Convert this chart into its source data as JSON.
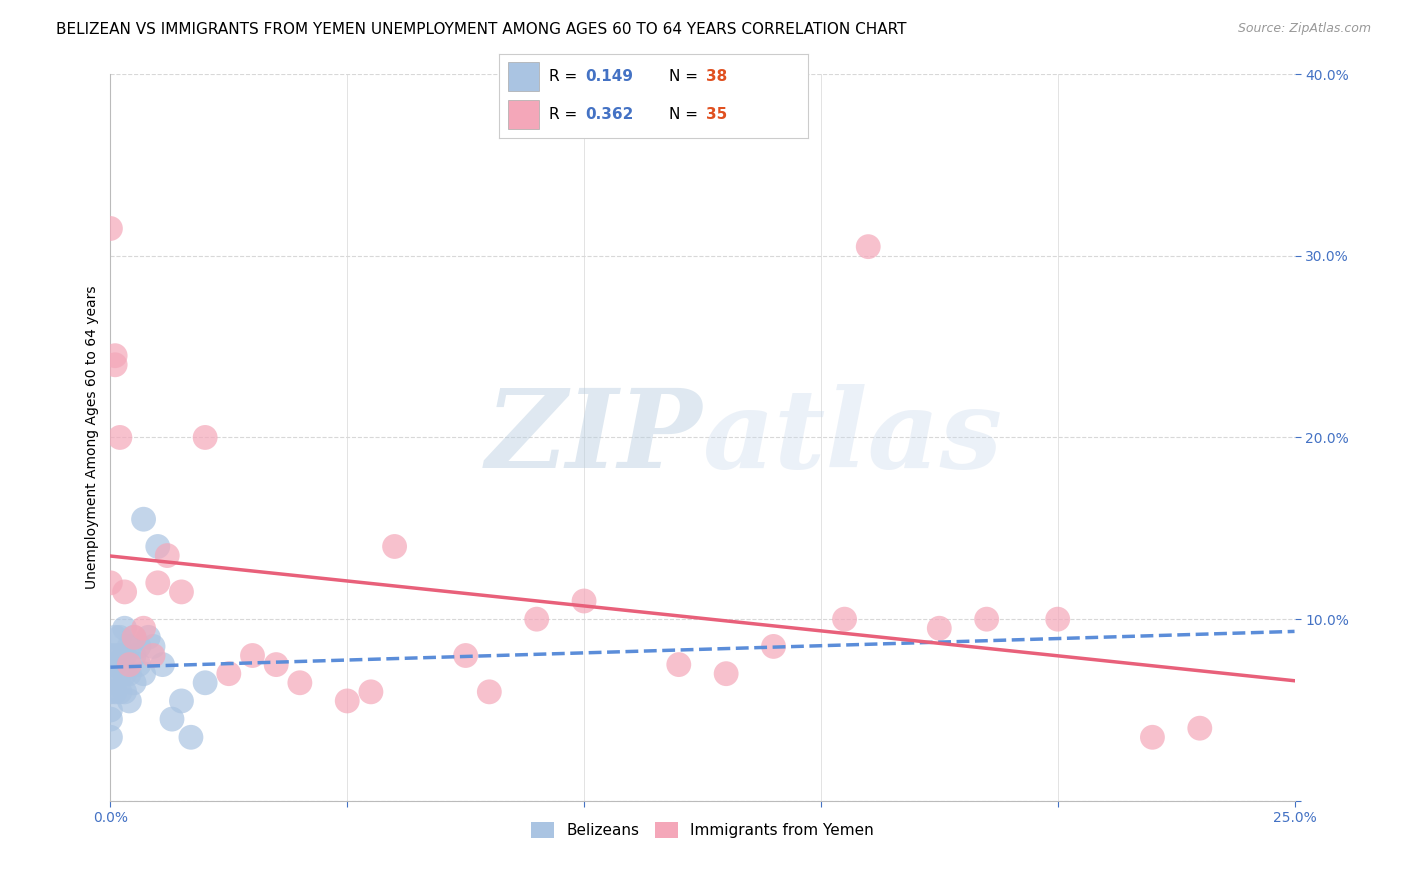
{
  "title": "BELIZEAN VS IMMIGRANTS FROM YEMEN UNEMPLOYMENT AMONG AGES 60 TO 64 YEARS CORRELATION CHART",
  "source": "Source: ZipAtlas.com",
  "ylabel": "Unemployment Among Ages 60 to 64 years",
  "xlim": [
    0.0,
    0.25
  ],
  "ylim": [
    0.0,
    0.4
  ],
  "xticks": [
    0.0,
    0.05,
    0.1,
    0.15,
    0.2,
    0.25
  ],
  "yticks": [
    0.0,
    0.1,
    0.2,
    0.3,
    0.4
  ],
  "xtick_labels": [
    "0.0%",
    "",
    "",
    "",
    "",
    "25.0%"
  ],
  "ytick_labels": [
    "",
    "10.0%",
    "20.0%",
    "30.0%",
    "40.0%"
  ],
  "belizean_R": 0.149,
  "belizean_N": 38,
  "yemen_R": 0.362,
  "yemen_N": 35,
  "belizean_color": "#aac4e2",
  "belizean_line_color": "#5b8dd9",
  "yemen_color": "#f4a7b9",
  "yemen_line_color": "#e8607a",
  "legend_label1": "Belizeans",
  "legend_label2": "Immigrants from Yemen",
  "belizean_x": [
    0.0,
    0.0,
    0.0,
    0.0,
    0.0,
    0.0,
    0.0,
    0.0,
    0.001,
    0.001,
    0.001,
    0.001,
    0.002,
    0.002,
    0.002,
    0.002,
    0.003,
    0.003,
    0.003,
    0.003,
    0.004,
    0.004,
    0.004,
    0.005,
    0.005,
    0.005,
    0.006,
    0.006,
    0.007,
    0.007,
    0.008,
    0.009,
    0.01,
    0.011,
    0.013,
    0.015,
    0.017,
    0.02
  ],
  "belizean_y": [
    0.05,
    0.06,
    0.065,
    0.07,
    0.075,
    0.08,
    0.035,
    0.045,
    0.06,
    0.075,
    0.08,
    0.09,
    0.06,
    0.07,
    0.08,
    0.09,
    0.06,
    0.07,
    0.08,
    0.095,
    0.055,
    0.07,
    0.085,
    0.065,
    0.08,
    0.09,
    0.075,
    0.085,
    0.07,
    0.155,
    0.09,
    0.085,
    0.14,
    0.075,
    0.045,
    0.055,
    0.035,
    0.065
  ],
  "yemen_x": [
    0.0,
    0.0,
    0.001,
    0.001,
    0.002,
    0.003,
    0.004,
    0.005,
    0.007,
    0.009,
    0.01,
    0.012,
    0.015,
    0.02,
    0.025,
    0.03,
    0.035,
    0.04,
    0.05,
    0.055,
    0.06,
    0.075,
    0.08,
    0.09,
    0.1,
    0.12,
    0.13,
    0.14,
    0.155,
    0.16,
    0.175,
    0.185,
    0.2,
    0.22,
    0.23
  ],
  "yemen_y": [
    0.315,
    0.12,
    0.24,
    0.245,
    0.2,
    0.115,
    0.075,
    0.09,
    0.095,
    0.08,
    0.12,
    0.135,
    0.115,
    0.2,
    0.07,
    0.08,
    0.075,
    0.065,
    0.055,
    0.06,
    0.14,
    0.08,
    0.06,
    0.1,
    0.11,
    0.075,
    0.07,
    0.085,
    0.1,
    0.305,
    0.095,
    0.1,
    0.1,
    0.035,
    0.04
  ],
  "background_color": "#ffffff",
  "grid_color": "#d8d8d8",
  "title_fontsize": 11,
  "axis_label_fontsize": 10,
  "tick_fontsize": 10,
  "legend_fontsize": 11,
  "watermark_color": "#c8d8ec",
  "watermark_alpha": 0.45
}
